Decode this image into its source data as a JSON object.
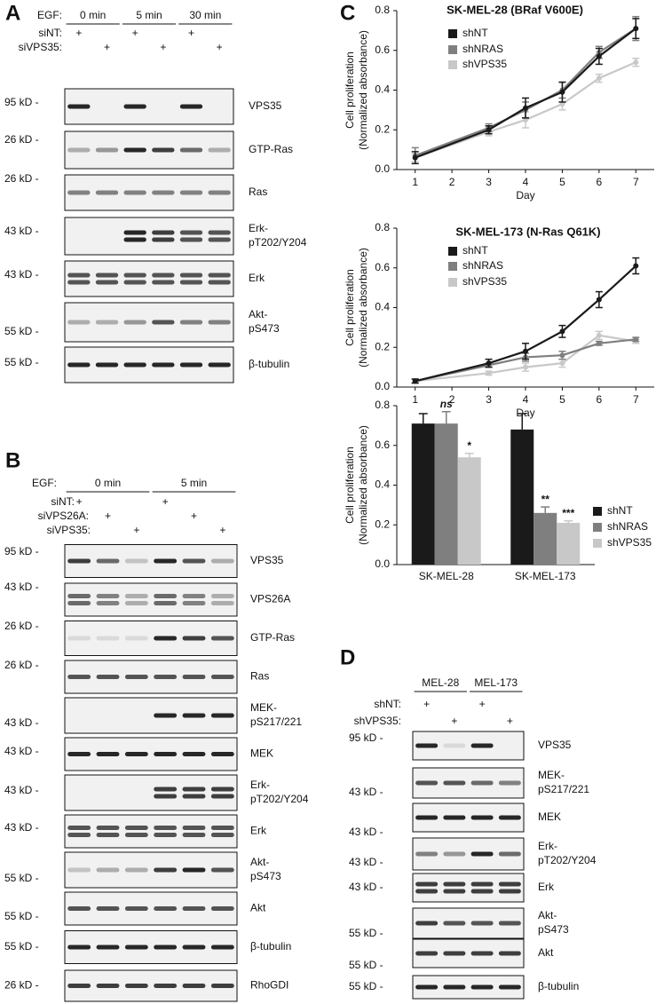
{
  "panels": [
    {
      "letter": "A",
      "header": {
        "label": "EGF:",
        "groups": [
          "0 min",
          "5 min",
          "30 min"
        ]
      },
      "conditions": [
        {
          "label": "siNT:",
          "marks": [
            "+",
            null,
            "+",
            null,
            "+",
            null
          ]
        },
        {
          "label": "siVPS35:",
          "marks": [
            null,
            "+",
            null,
            "+",
            null,
            "+"
          ]
        }
      ],
      "rows": [
        {
          "size": "95 kD -",
          "protein": [
            "VPS35"
          ]
        },
        {
          "size": "26 kD -",
          "protein": [
            "GTP-Ras"
          ]
        },
        {
          "size": "26 kD -",
          "protein": [
            "Ras"
          ]
        },
        {
          "size": "43 kD -",
          "protein": [
            "Erk-",
            "pT202/Y204"
          ]
        },
        {
          "size": "43 kD -",
          "protein": [
            "Erk"
          ]
        },
        {
          "size": "55 kD -",
          "protein": [
            "Akt-",
            "pS473"
          ]
        },
        {
          "size": "55 kD -",
          "protein": [
            "β-tubulin"
          ]
        }
      ]
    },
    {
      "letter": "B",
      "header": {
        "label": "EGF:",
        "groups": [
          "0 min",
          "5 min"
        ]
      },
      "conditions": [
        {
          "label": "siNT:",
          "marks": [
            "+",
            null,
            null,
            "+",
            null,
            null
          ]
        },
        {
          "label": "siVPS26A:",
          "marks": [
            null,
            "+",
            null,
            null,
            "+",
            null
          ]
        },
        {
          "label": "siVPS35:",
          "marks": [
            null,
            null,
            "+",
            null,
            null,
            "+"
          ]
        }
      ],
      "rows": [
        {
          "size": "95 kD -",
          "protein": [
            "VPS35"
          ]
        },
        {
          "size": "43 kD -",
          "protein": [
            "VPS26A"
          ]
        },
        {
          "size": "26 kD -",
          "protein": [
            "GTP-Ras"
          ]
        },
        {
          "size": "26 kD -",
          "protein": [
            "Ras"
          ]
        },
        {
          "size": "43 kD -",
          "protein": [
            "MEK-",
            "pS217/221"
          ]
        },
        {
          "size": "43 kD -",
          "protein": [
            "MEK"
          ]
        },
        {
          "size": "43 kD -",
          "protein": [
            "Erk-",
            "pT202/Y204"
          ]
        },
        {
          "size": "43 kD -",
          "protein": [
            "Erk"
          ]
        },
        {
          "size": "55 kD -",
          "protein": [
            "Akt-",
            "pS473"
          ]
        },
        {
          "size": "55 kD -",
          "protein": [
            "Akt"
          ]
        },
        {
          "size": "55 kD -",
          "protein": [
            "β-tubulin"
          ]
        },
        {
          "size": "26 kD -",
          "protein": [
            "RhoGDI"
          ]
        }
      ]
    },
    {
      "letter": "D",
      "header": {
        "groups": [
          "MEL-28",
          "MEL-173"
        ]
      },
      "conditions": [
        {
          "label": "shNT:",
          "marks": [
            "+",
            null,
            "+",
            null
          ]
        },
        {
          "label": "shVPS35:",
          "marks": [
            null,
            "+",
            null,
            "+"
          ]
        }
      ],
      "rows": [
        {
          "size": "95 kD -",
          "protein": [
            "VPS35"
          ]
        },
        {
          "size": "43 kD -",
          "protein": [
            "MEK-",
            "pS217/221"
          ]
        },
        {
          "size": "43 kD -",
          "protein": [
            "MEK"
          ]
        },
        {
          "size": "43 kD -",
          "protein": [
            "Erk-",
            "pT202/Y204"
          ]
        },
        {
          "size": "43 kD -",
          "protein": [
            "Erk"
          ]
        },
        {
          "size": "55 kD -",
          "protein": [
            "Akt-",
            "pS473"
          ]
        },
        {
          "size": "55 kD -",
          "protein": [
            "Akt"
          ]
        },
        {
          "size": "55 kD -",
          "protein": [
            "β-tubulin"
          ]
        }
      ]
    }
  ],
  "panel_c_letter": "C",
  "chart_data": [
    {
      "type": "line",
      "title": "SK-MEL-28 (BRaf V600E)",
      "x_label": "Day",
      "y_label": [
        "Cell proliferation",
        "(Normalized absorbance)"
      ],
      "x": [
        1,
        3,
        4,
        5,
        6,
        7
      ],
      "xlim": [
        0.5,
        7.5
      ],
      "xticks": [
        1,
        2,
        3,
        4,
        5,
        6,
        7
      ],
      "ylim": [
        0,
        0.8
      ],
      "yticks": [
        {
          "value": 0,
          "label": "0.0"
        },
        0.2,
        0.4,
        0.6,
        0.8
      ],
      "series": [
        {
          "name": "shNT",
          "color": "#1a1a1a",
          "values": [
            0.06,
            0.2,
            0.31,
            0.39,
            0.57,
            0.71
          ],
          "errors": [
            0.03,
            0.02,
            0.05,
            0.05,
            0.04,
            0.05
          ]
        },
        {
          "name": "shNRAS",
          "color": "#7f7f7f",
          "values": [
            0.07,
            0.21,
            0.3,
            0.4,
            0.59,
            0.71
          ],
          "errors": [
            0.04,
            0.02,
            0.04,
            0.04,
            0.03,
            0.06
          ]
        },
        {
          "name": "shVPS35",
          "color": "#c8c8c8",
          "values": [
            0.06,
            0.19,
            0.25,
            0.33,
            0.46,
            0.54
          ],
          "errors": [
            0.02,
            0.02,
            0.04,
            0.03,
            0.02,
            0.02
          ]
        }
      ]
    },
    {
      "type": "line",
      "title": "SK-MEL-173 (N-Ras Q61K)",
      "x_label": "Day",
      "y_label": [
        "Cell proliferation",
        "(Normalized absorbance)"
      ],
      "x": [
        1,
        3,
        4,
        5,
        6,
        7
      ],
      "xlim": [
        0.5,
        7.5
      ],
      "xticks": [
        1,
        2,
        3,
        4,
        5,
        6,
        7
      ],
      "ylim": [
        0,
        0.8
      ],
      "yticks": [
        {
          "value": 0,
          "label": "0.0"
        },
        0.2,
        0.4,
        0.6,
        0.8
      ],
      "series": [
        {
          "name": "shNT",
          "color": "#1a1a1a",
          "values": [
            0.03,
            0.12,
            0.18,
            0.28,
            0.44,
            0.61
          ],
          "errors": [
            0.01,
            0.02,
            0.04,
            0.03,
            0.04,
            0.04
          ]
        },
        {
          "name": "shNRAS",
          "color": "#7f7f7f",
          "values": [
            0.03,
            0.11,
            0.15,
            0.16,
            0.22,
            0.24
          ],
          "errors": [
            0.01,
            0.01,
            0.02,
            0.02,
            0.01,
            0.01
          ]
        },
        {
          "name": "shVPS35",
          "color": "#c8c8c8",
          "values": [
            0.03,
            0.07,
            0.1,
            0.12,
            0.26,
            0.23
          ],
          "errors": [
            0.01,
            0.01,
            0.02,
            0.02,
            0.02,
            0.01
          ]
        }
      ]
    },
    {
      "type": "bar",
      "y_label": [
        "Cell proliferation",
        "(Normalized absorbance)"
      ],
      "categories": [
        "SK-MEL-28",
        "SK-MEL-173"
      ],
      "ylim": [
        0,
        0.8
      ],
      "yticks": [
        {
          "value": 0,
          "label": "0.0"
        },
        0.2,
        0.4,
        0.6,
        0.8
      ],
      "series": [
        {
          "name": "shNT",
          "color": "#1a1a1a",
          "values": [
            0.71,
            0.68
          ],
          "errors": [
            0.05,
            0.08
          ],
          "significance": [
            null,
            null
          ]
        },
        {
          "name": "shNRAS",
          "color": "#7f7f7f",
          "values": [
            0.71,
            0.26
          ],
          "errors": [
            0.06,
            0.03
          ],
          "significance": [
            "ns",
            "**"
          ]
        },
        {
          "name": "shVPS35",
          "color": "#c8c8c8",
          "values": [
            0.54,
            0.21
          ],
          "errors": [
            0.02,
            0.01
          ],
          "significance": [
            "*",
            "***"
          ]
        }
      ]
    }
  ]
}
